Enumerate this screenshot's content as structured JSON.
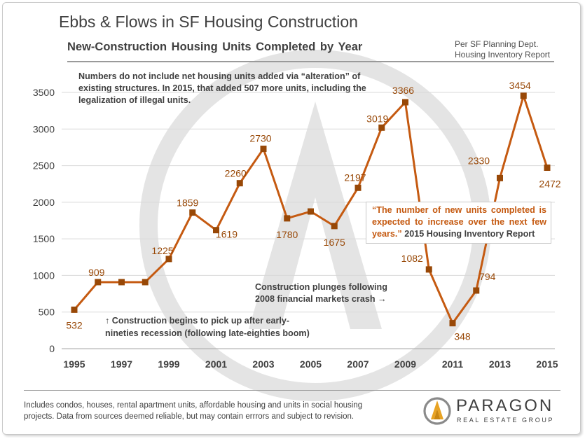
{
  "header": {
    "title": "Ebbs & Flows in SF Housing Construction",
    "subtitle": "New-Construction Housing Units Completed by Year",
    "source_line1": "Per SF Planning Dept.",
    "source_line2": "Housing Inventory Report"
  },
  "annotations": {
    "alteration_note": "Numbers do not include net housing units added via “alteration” of existing structures. In 2015, that added 507 more units, including the legalization of illegal units.",
    "quote_text": "“The number of new units completed is expected to increase over the next few years.”",
    "quote_source": " 2015 Housing Inventory Report",
    "crash_line1": "Construction plunges following",
    "crash_line2": "2008 financial markets crash →",
    "recovery_line1": "↑ Construction begins to pick up after early-",
    "recovery_line2": "nineties recession (following late-eighties boom)"
  },
  "footer": {
    "note": "Includes condos, houses, rental apartment units, affordable housing and units in social housing projects. Data from sources deemed reliable, but may contain errrors and subject to revision."
  },
  "logo": {
    "name": "PARAGON",
    "tagline": "REAL ESTATE GROUP",
    "icon": "paragon-a-logo-icon"
  },
  "colors": {
    "series": "#c55a11",
    "marker": "#984807",
    "data_label": "#984807",
    "text": "#404040",
    "grid": "#d9d9d9",
    "watermark": "#e4e4e4"
  },
  "chart_data": {
    "type": "line",
    "title": "New-Construction Housing Units Completed by Year",
    "xlabel": "",
    "ylabel": "",
    "x": [
      1995,
      1996,
      1997,
      1998,
      1999,
      2000,
      2001,
      2002,
      2003,
      2004,
      2005,
      2006,
      2007,
      2008,
      2009,
      2010,
      2011,
      2012,
      2013,
      2014,
      2015
    ],
    "series": [
      {
        "values": [
          532,
          909,
          909,
          909,
          1225,
          1859,
          1619,
          2260,
          2730,
          1780,
          1874,
          1675,
          2197,
          3019,
          3366,
          1082,
          348,
          794,
          2330,
          3454,
          2472
        ]
      }
    ],
    "data_labels": [
      "532",
      "909",
      "",
      "",
      "1225",
      "1859",
      "1619",
      "2260",
      "2730",
      "1780",
      "",
      "1675",
      "2197",
      "3019",
      "3366",
      "1082",
      "348",
      "794",
      "2330",
      "3454",
      "2472"
    ],
    "x_tick_labels": [
      "1995",
      "1997",
      "1999",
      "2001",
      "2003",
      "2005",
      "2007",
      "2009",
      "2011",
      "2013",
      "2015"
    ],
    "y_tick_labels": [
      "0",
      "500",
      "1000",
      "1500",
      "2000",
      "2500",
      "3000",
      "3500"
    ],
    "ylim": [
      0,
      3700
    ],
    "grid": true,
    "legend": "none"
  }
}
